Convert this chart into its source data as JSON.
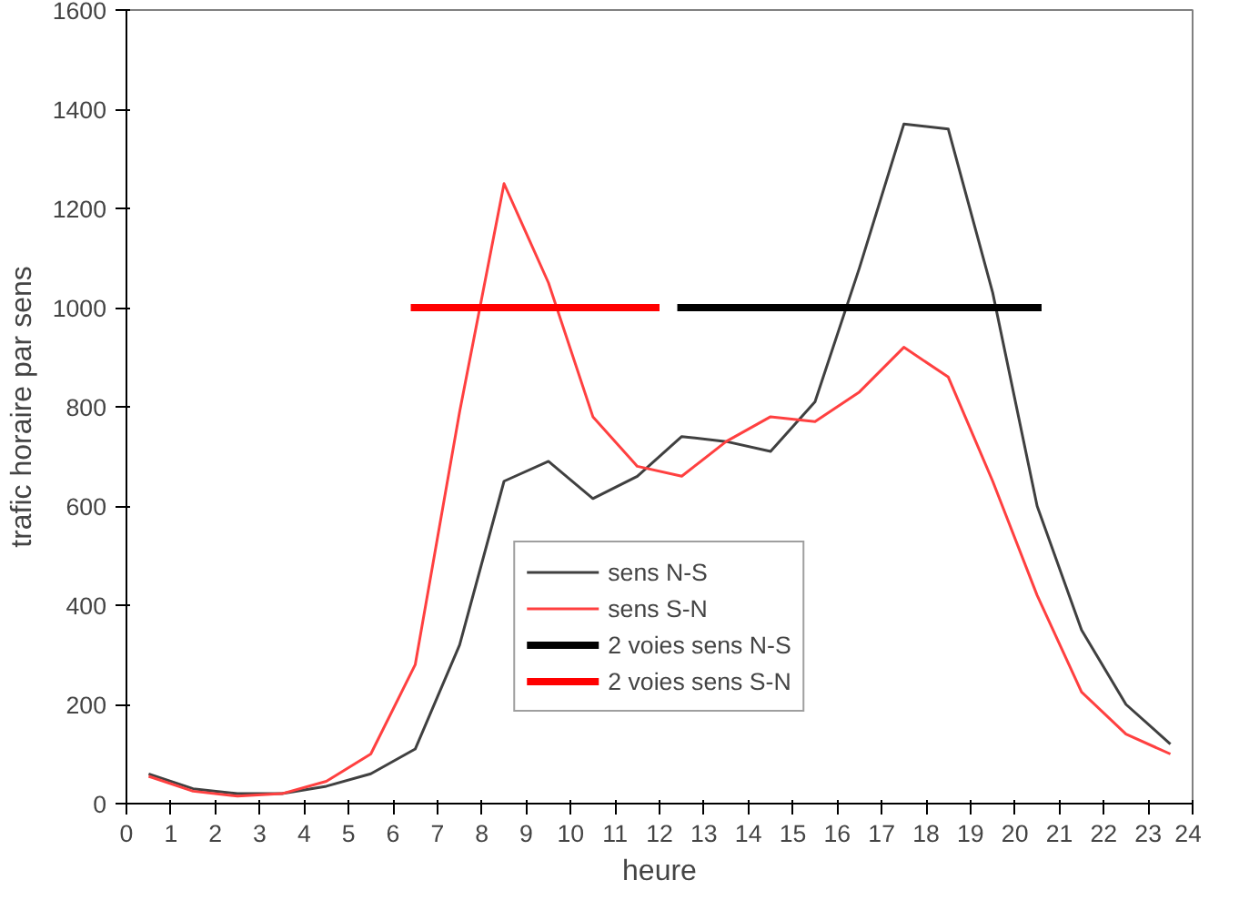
{
  "chart_data": {
    "type": "line",
    "xlabel": "heure",
    "ylabel": "trafic horaire par sens",
    "xlim": [
      0,
      24
    ],
    "xticks": [
      0,
      1,
      2,
      3,
      4,
      5,
      6,
      7,
      8,
      9,
      10,
      11,
      12,
      13,
      14,
      15,
      16,
      17,
      18,
      19,
      20,
      21,
      22,
      23,
      24
    ],
    "ylim": [
      0,
      1600
    ],
    "yticks": [
      0,
      200,
      400,
      600,
      800,
      1000,
      1200,
      1400,
      1600
    ],
    "grid": false,
    "legend": "bottom",
    "marker": "none",
    "line_style": "solid",
    "series": [
      {
        "name": "sens N-S",
        "color": "#404040",
        "x": [
          0.5,
          1.5,
          2.5,
          3.5,
          4.5,
          5.5,
          6.5,
          7.5,
          8.5,
          9.5,
          10.5,
          11.5,
          12.5,
          13.5,
          14.5,
          15.5,
          16.5,
          17.5,
          18.5,
          19.5,
          20.5,
          21.5,
          22.5,
          23.5
        ],
        "values": [
          60,
          30,
          20,
          20,
          35,
          60,
          110,
          320,
          650,
          690,
          615,
          660,
          740,
          730,
          710,
          810,
          1080,
          1370,
          1360,
          1030,
          600,
          350,
          200,
          120
        ]
      },
      {
        "name": "sens S-N",
        "color": "#ff4040",
        "x": [
          0.5,
          1.5,
          2.5,
          3.5,
          4.5,
          5.5,
          6.5,
          7.5,
          8.5,
          9.5,
          10.5,
          11.5,
          12.5,
          13.5,
          14.5,
          15.5,
          16.5,
          17.5,
          18.5,
          19.5,
          20.5,
          21.5,
          22.5,
          23.5
        ],
        "values": [
          55,
          25,
          15,
          20,
          45,
          100,
          280,
          790,
          1250,
          1050,
          780,
          680,
          660,
          730,
          780,
          770,
          830,
          920,
          860,
          650,
          420,
          225,
          140,
          100
        ]
      },
      {
        "name": "2 voies sens N-S",
        "color": "#000000",
        "x": [
          12.4,
          20.6
        ],
        "values": [
          1000,
          1000
        ]
      },
      {
        "name": "2 voies sens S-N",
        "color": "#ff0000",
        "x": [
          6.4,
          12.0
        ],
        "values": [
          1000,
          1000
        ]
      }
    ]
  }
}
